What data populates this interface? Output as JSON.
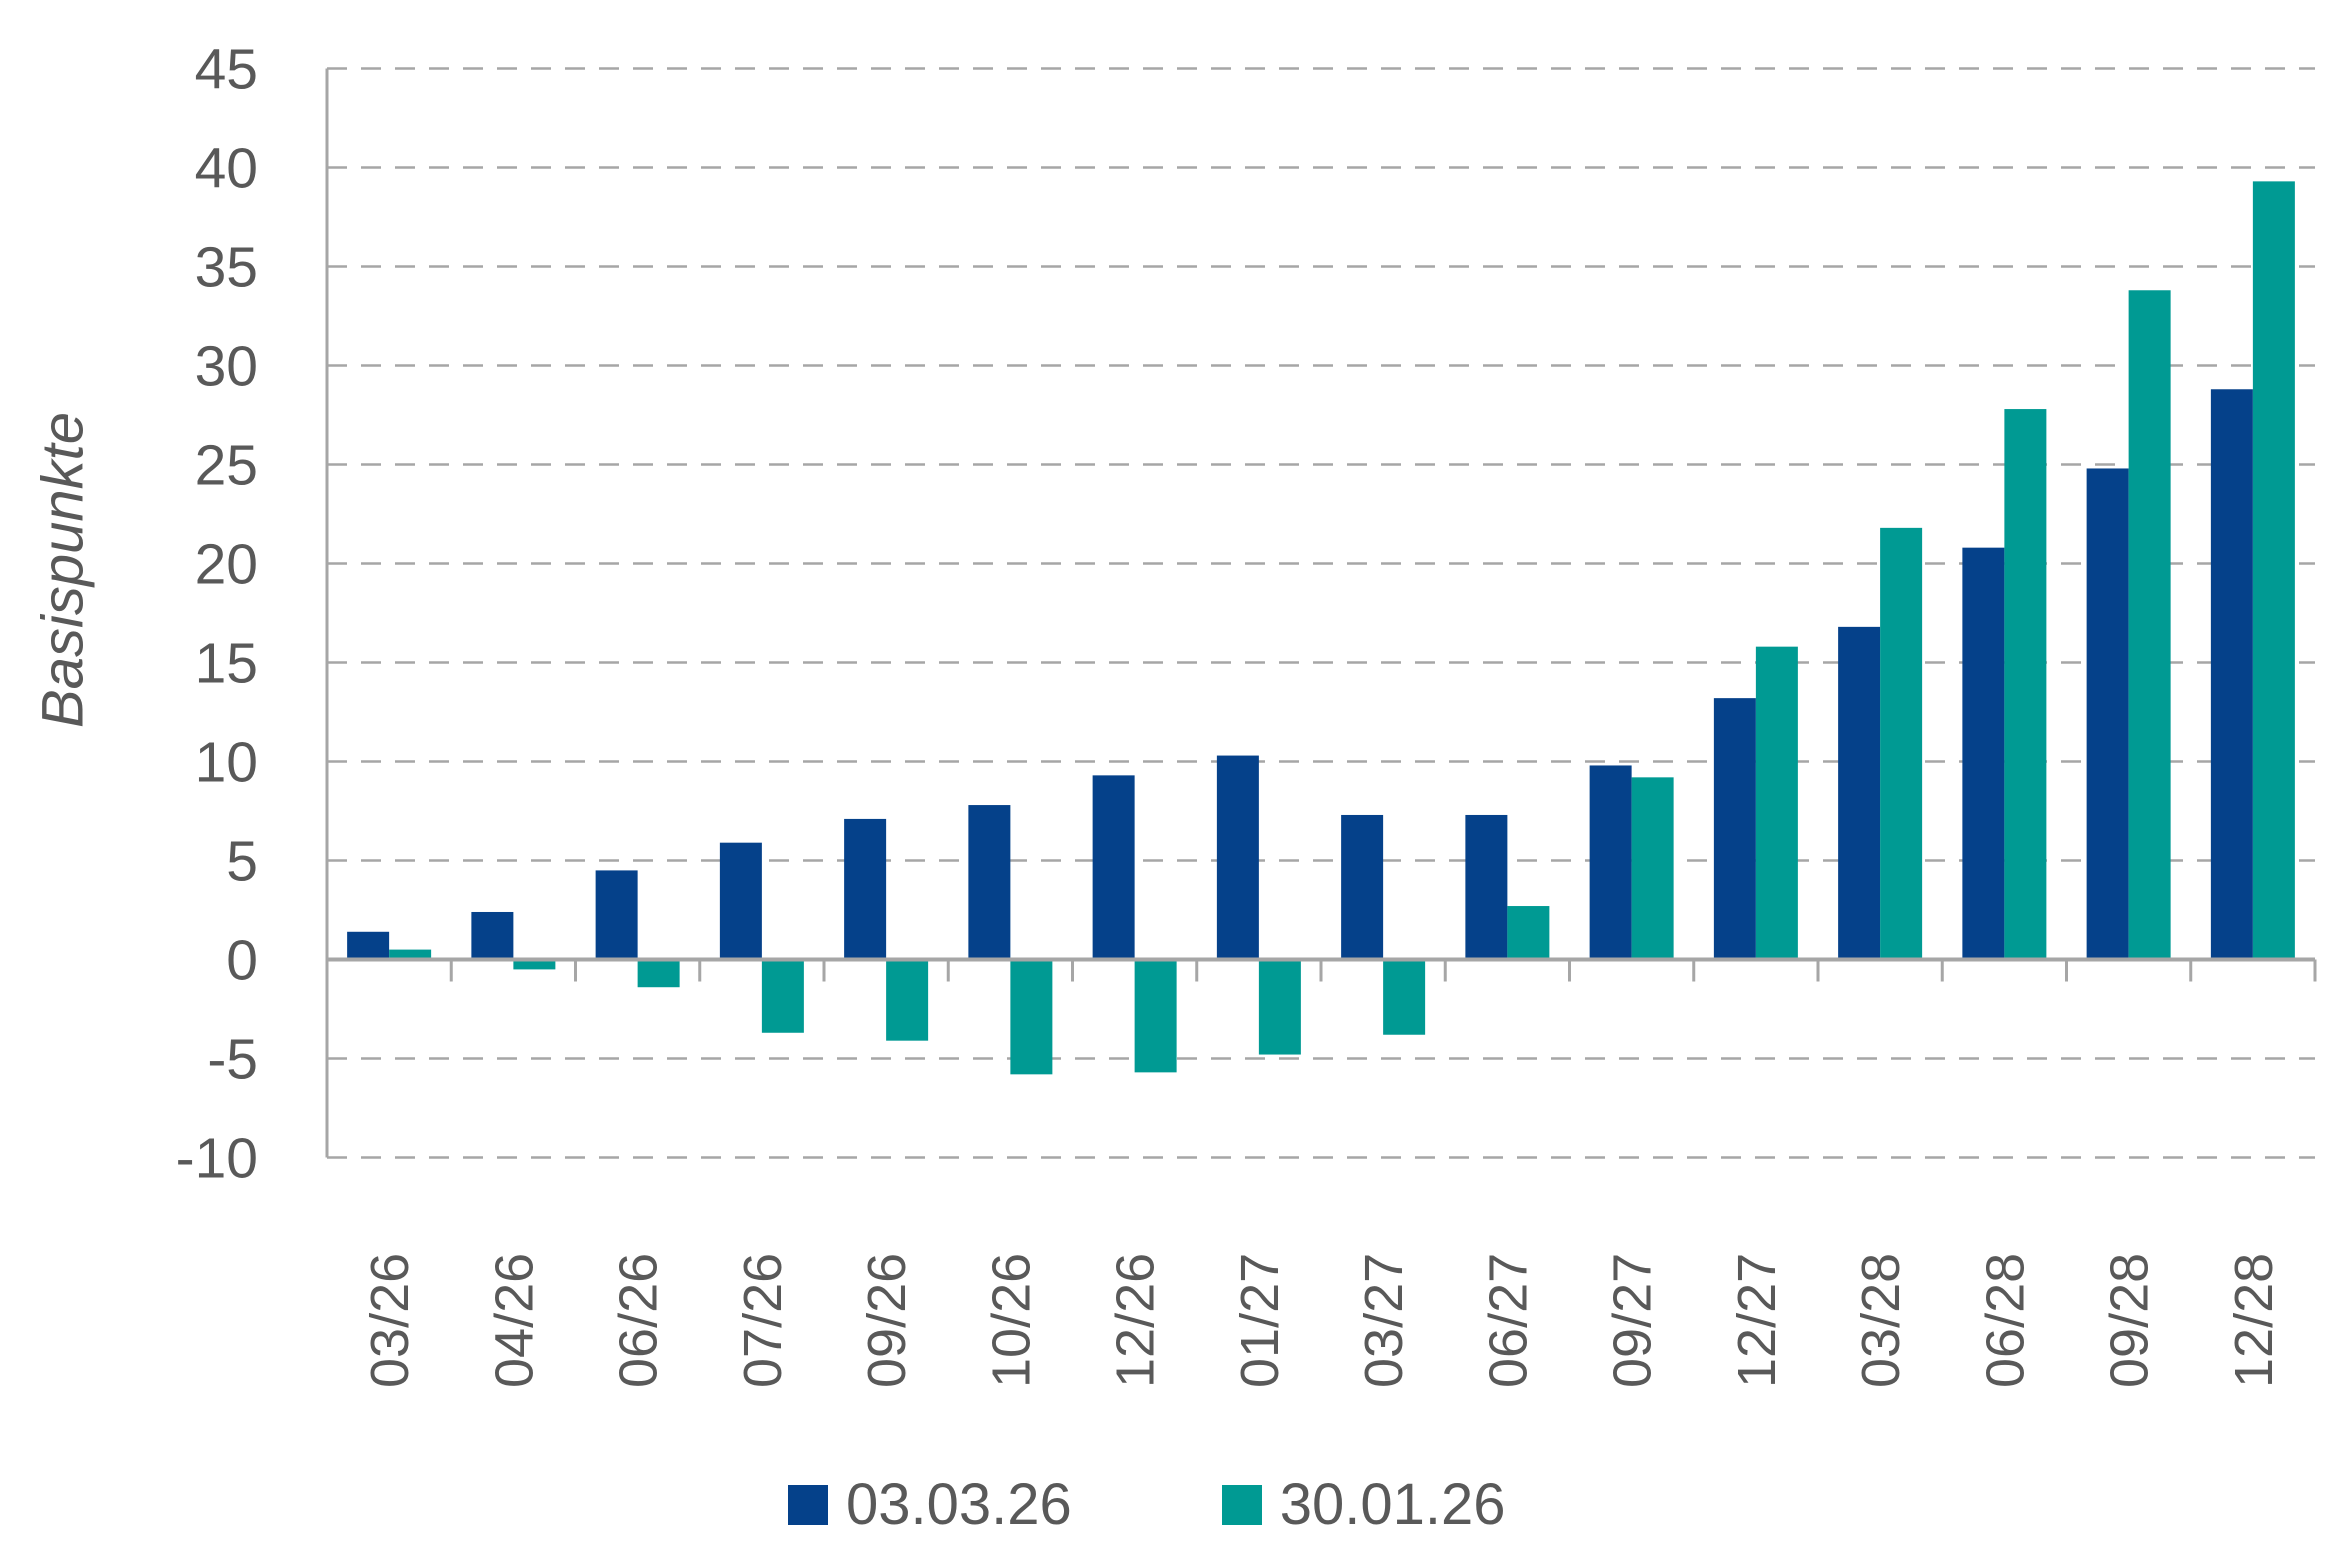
{
  "chart_data": {
    "type": "bar",
    "title": "",
    "xlabel": "",
    "ylabel": "Basispunkte",
    "ylim": [
      -10,
      45
    ],
    "ytick_step": 5,
    "yticks": [
      45,
      40,
      35,
      30,
      25,
      20,
      15,
      10,
      5,
      0,
      -5,
      -10
    ],
    "grid": "horizontal-dashed",
    "legend_position": "bottom-center",
    "categories": [
      "03/26",
      "04/26",
      "06/26",
      "07/26",
      "09/26",
      "10/26",
      "12/26",
      "01/27",
      "03/27",
      "06/27",
      "09/27",
      "12/27",
      "03/28",
      "06/28",
      "09/28",
      "12/28"
    ],
    "series": [
      {
        "name": "03.03.26",
        "color": "#05418A",
        "values": [
          1.4,
          2.4,
          4.5,
          5.9,
          7.1,
          7.8,
          9.3,
          10.3,
          7.3,
          7.3,
          9.8,
          13.2,
          16.8,
          20.8,
          24.8,
          28.8
        ]
      },
      {
        "name": "30.01.26",
        "color": "#009A93",
        "values": [
          0.5,
          -0.5,
          -1.4,
          -3.7,
          -4.1,
          -5.8,
          -5.7,
          -4.8,
          -3.8,
          2.7,
          9.2,
          15.8,
          21.8,
          27.8,
          33.8,
          39.3
        ]
      }
    ]
  },
  "legend": {
    "items": [
      {
        "label": "03.03.26",
        "color": "#05418A"
      },
      {
        "label": "30.01.26",
        "color": "#009A93"
      }
    ]
  },
  "colors": {
    "background": "#FFFFFF",
    "text": "#595959",
    "gridline": "#A6A6A6",
    "axis": "#A6A6A6"
  }
}
